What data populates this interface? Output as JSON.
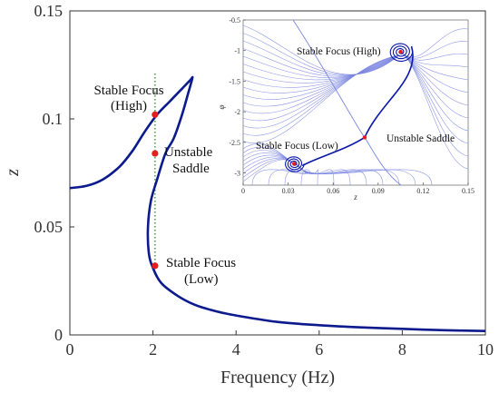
{
  "chart_data": [
    {
      "type": "line",
      "xlabel": "Frequency (Hz)",
      "ylabel": "z",
      "xlim": [
        0,
        10
      ],
      "ylim": [
        0,
        0.15
      ],
      "x_ticks": [
        "0",
        "2",
        "4",
        "6",
        "8",
        "10"
      ],
      "y_ticks": [
        "0",
        "0.05",
        "0.1",
        "0.15"
      ],
      "grid": false,
      "curve_color": "#0b1a8c",
      "series": [
        {
          "x": [
            0,
            0.4,
            0.8,
            1.2,
            1.5,
            1.8,
            2.1,
            2.4,
            2.7,
            2.9,
            2.95,
            2.85,
            2.7,
            2.5,
            2.3,
            2.1,
            1.95,
            1.88,
            1.9,
            2.0,
            2.2,
            2.6,
            3.0,
            3.5,
            4.0,
            5.0,
            6.0,
            7.0,
            8.0,
            9.0,
            10.0
          ],
          "y": [
            0.068,
            0.069,
            0.072,
            0.078,
            0.085,
            0.094,
            0.102,
            0.108,
            0.114,
            0.118,
            0.119,
            0.112,
            0.102,
            0.091,
            0.084,
            0.072,
            0.062,
            0.05,
            0.038,
            0.031,
            0.024,
            0.018,
            0.014,
            0.011,
            0.009,
            0.006,
            0.0045,
            0.0035,
            0.0028,
            0.0022,
            0.0018
          ]
        }
      ],
      "vertical_line": {
        "x": 2.05,
        "color": "#2e8b2e",
        "style": "dotted"
      },
      "points": [
        {
          "x": 2.05,
          "y": 0.102,
          "label": "Stable Focus (High)"
        },
        {
          "x": 2.05,
          "y": 0.084,
          "label": "Unstable Saddle"
        },
        {
          "x": 2.05,
          "y": 0.032,
          "label": "Stable Focus (Low)"
        }
      ],
      "annotations": [
        "Stable Focus",
        "(High)",
        "Unstable",
        "Saddle",
        "Stable Focus",
        "(Low)"
      ],
      "point_color": "#e02020"
    },
    {
      "type": "line",
      "title": "",
      "xlabel": "z",
      "ylabel": "φ",
      "xlim": [
        0,
        0.15
      ],
      "ylim": [
        -3.2,
        -0.5
      ],
      "x_ticks": [
        "0",
        "0.03",
        "0.06",
        "0.09",
        "0.12",
        "0.15"
      ],
      "y_ticks": [
        "-0.5",
        "-1",
        "-1.5",
        "-2",
        "-2.5",
        "-3"
      ],
      "stream_color": "#7b86e0",
      "separatrix_color": "#0a18a8",
      "points": [
        {
          "x": 0.034,
          "y": -2.85,
          "label": "Stable Focus (Low)"
        },
        {
          "x": 0.081,
          "y": -2.42,
          "label": "Unstable Saddle"
        },
        {
          "x": 0.105,
          "y": -1.02,
          "label": "Stable Focus (High)"
        }
      ],
      "annotations": [
        "Stable Focus (High)",
        "Stable Focus (Low)",
        "Unstable Saddle"
      ]
    }
  ]
}
